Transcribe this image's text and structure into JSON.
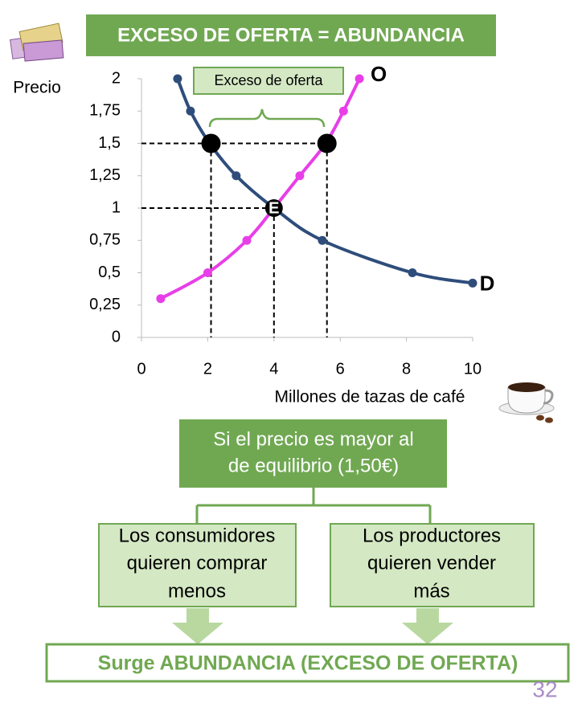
{
  "chart_data": {
    "type": "line",
    "title": "EXCESO DE OFERTA = ABUNDANCIA",
    "ylabel": "Precio",
    "xlabel": "Millones de tazas de café",
    "annotation": "Exceso de oferta",
    "xlim": [
      0,
      10
    ],
    "xticks": [
      0,
      2,
      4,
      6,
      8,
      10
    ],
    "ylim": [
      0,
      2
    ],
    "yticks": [
      0,
      {
        "value": 0.25,
        "label": "0,25"
      },
      {
        "value": 0.5,
        "label": "0,5"
      },
      {
        "value": 0.75,
        "label": "0,75"
      },
      1,
      {
        "value": 1.25,
        "label": "1,25"
      },
      {
        "value": 1.5,
        "label": "1,5"
      },
      {
        "value": 1.75,
        "label": "1,75"
      },
      2
    ],
    "series": [
      {
        "name": "O",
        "color": "#e83ee8",
        "x": [
          0.58,
          2.0,
          3.18,
          4.0,
          4.78,
          5.56,
          6.1,
          6.58
        ],
        "values": [
          0.3,
          0.5,
          0.75,
          1.0,
          1.25,
          1.5,
          1.75,
          2.0
        ]
      },
      {
        "name": "D",
        "color": "#2e4d7b",
        "x": [
          1.09,
          1.48,
          2.06,
          2.86,
          4.0,
          5.46,
          8.18,
          10
        ],
        "values": [
          2.0,
          1.75,
          1.5,
          1.25,
          1.0,
          0.75,
          0.5,
          0.42
        ]
      }
    ],
    "points": [
      {
        "x": 2.1,
        "y": 1.5
      },
      {
        "x": 5.6,
        "y": 1.5
      },
      {
        "x": 4,
        "y": 1,
        "label": "E"
      }
    ]
  },
  "diagram": {
    "condition": [
      "Si el precio es mayor al",
      "de equilibrio (1,50€)"
    ],
    "left": [
      "Los consumidores",
      "quieren comprar",
      "menos"
    ],
    "right": [
      "Los productores",
      "quieren vender",
      "más"
    ],
    "result": "Surge ABUNDANCIA (EXCESO DE OFERTA)",
    "page_number": "32"
  }
}
